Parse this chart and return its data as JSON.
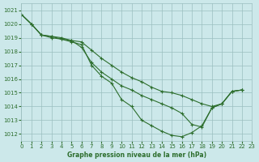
{
  "title": "Graphe pression niveau de la mer (hPa)",
  "bg_color": "#cce8ea",
  "grid_color": "#9bbfbf",
  "line_color": "#2d6e2d",
  "xlim": [
    0,
    23
  ],
  "ylim": [
    1011.5,
    1021.5
  ],
  "yticks": [
    1012,
    1013,
    1014,
    1015,
    1016,
    1017,
    1018,
    1019,
    1020,
    1021
  ],
  "xticks": [
    0,
    1,
    2,
    3,
    4,
    5,
    6,
    7,
    8,
    9,
    10,
    11,
    12,
    13,
    14,
    15,
    16,
    17,
    18,
    19,
    20,
    21,
    22,
    23
  ],
  "series": [
    [
      1020.7,
      1020.0,
      1019.2,
      1019.0,
      1018.9,
      1018.7,
      1018.5,
      1017.0,
      1016.2,
      1015.7,
      1014.5,
      1014.0,
      1013.0,
      1012.6,
      1012.2,
      1011.9,
      1011.8,
      1012.1,
      1012.6,
      1013.9,
      1014.2,
      1015.1,
      1015.2,
      null
    ],
    [
      1020.7,
      1020.0,
      1019.2,
      1019.1,
      1018.9,
      1018.8,
      1018.3,
      1017.2,
      1016.5,
      1016.0,
      1015.5,
      1015.2,
      1014.8,
      1014.5,
      1014.2,
      1013.9,
      1013.5,
      1012.7,
      1012.5,
      1013.9,
      1014.2,
      1015.1,
      1015.2,
      null
    ],
    [
      1020.7,
      1020.0,
      1019.2,
      1019.1,
      1019.0,
      1018.8,
      1018.7,
      1018.1,
      1017.5,
      1017.0,
      1016.5,
      1016.1,
      1015.8,
      1015.4,
      1015.1,
      1015.0,
      1014.8,
      1014.5,
      1014.2,
      1014.0,
      1014.2,
      1015.1,
      1015.2,
      null
    ]
  ]
}
